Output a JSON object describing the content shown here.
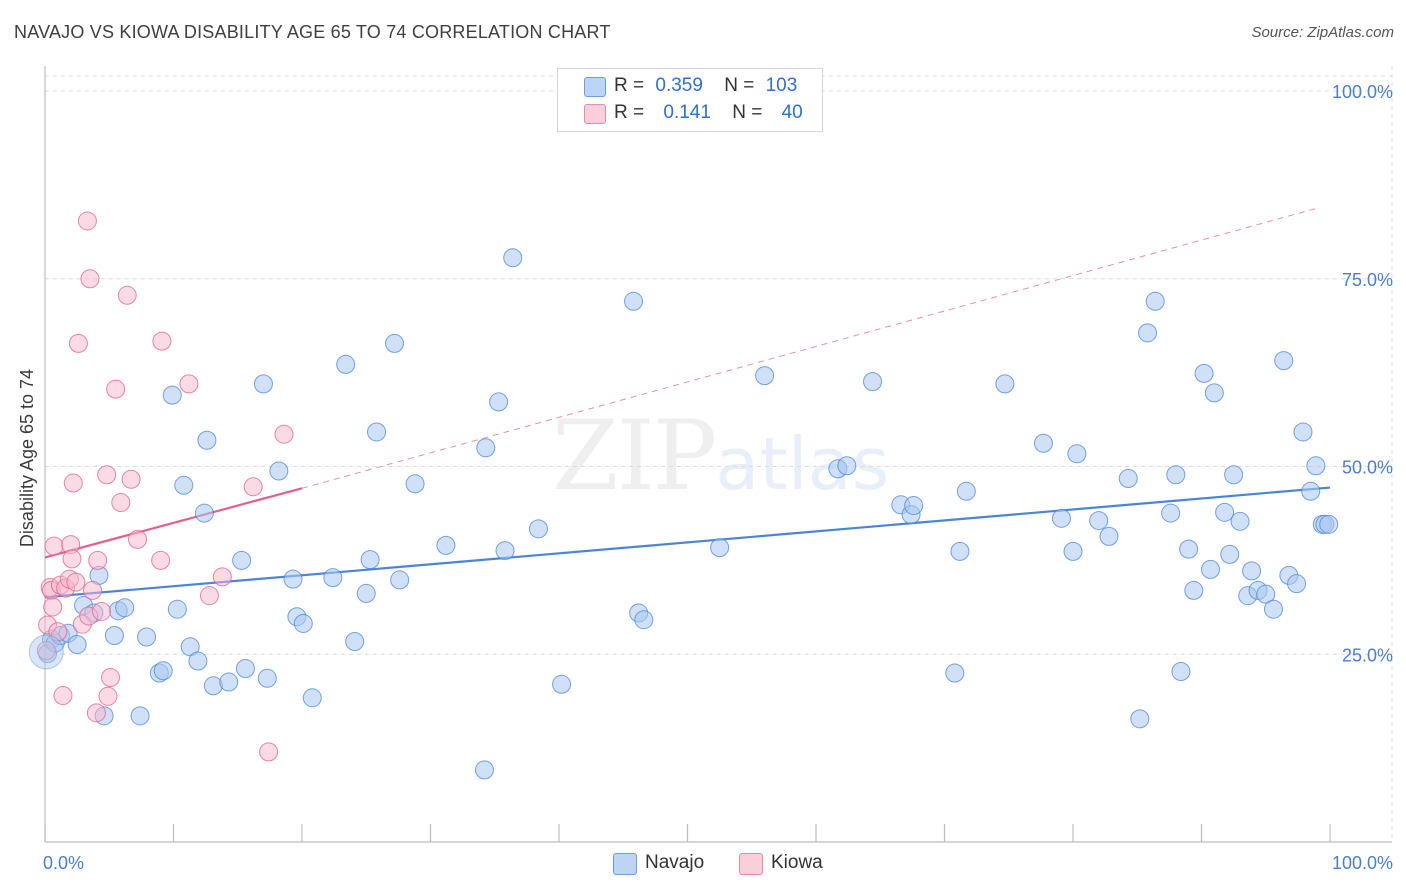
{
  "title": "NAVAJO VS KIOWA DISABILITY AGE 65 TO 74 CORRELATION CHART",
  "source": "Source: ZipAtlas.com",
  "watermark": {
    "zip": "ZIP",
    "atlas": "atlas"
  },
  "legend": {
    "rows": [
      {
        "r_label": "R =",
        "r_value": "0.359",
        "n_label": "N =",
        "n_value": "103",
        "color": "#a9c8f0"
      },
      {
        "r_label": "R =",
        "r_value": "0.141",
        "n_label": "N =",
        "n_value": "40",
        "color": "#f5b8cb"
      }
    ]
  },
  "bottom_legend": [
    {
      "label": "Navajo",
      "color": "#a9c8f0"
    },
    {
      "label": "Kiowa",
      "color": "#f5b8cb"
    }
  ],
  "chart_data": {
    "type": "scatter",
    "title": "NAVAJO VS KIOWA DISABILITY AGE 65 TO 74 CORRELATION CHART",
    "ylabel": "Disability Age 65 to 74",
    "xlabel": "",
    "xlim": [
      0,
      100
    ],
    "ylim": [
      0,
      102
    ],
    "x_tick_labels": [
      "0.0%",
      "100.0%"
    ],
    "y_tick_labels": [
      {
        "value": 25,
        "label": "25.0%"
      },
      {
        "value": 50,
        "label": "50.0%"
      },
      {
        "value": 75,
        "label": "75.0%"
      },
      {
        "value": 100,
        "label": "100.0%"
      }
    ],
    "grid": true,
    "series": [
      {
        "name": "Navajo",
        "color": "#4a85d8",
        "fill": "#a9c8f0",
        "trend": {
          "x": [
            0,
            100
          ],
          "y": [
            32.6,
            47.2
          ],
          "style": "solid"
        },
        "points": [
          [
            0.2,
            25.1
          ],
          [
            0.5,
            27.0
          ],
          [
            0.8,
            26.5
          ],
          [
            1.2,
            27.5
          ],
          [
            1.8,
            27.8
          ],
          [
            2.5,
            26.3
          ],
          [
            3.0,
            31.5
          ],
          [
            3.8,
            30.5
          ],
          [
            4.2,
            35.5
          ],
          [
            4.6,
            16.8
          ],
          [
            5.4,
            27.5
          ],
          [
            5.7,
            30.8
          ],
          [
            6.2,
            31.2
          ],
          [
            7.4,
            16.8
          ],
          [
            7.9,
            27.3
          ],
          [
            8.9,
            22.5
          ],
          [
            9.2,
            22.8
          ],
          [
            9.9,
            59.5
          ],
          [
            10.3,
            31.0
          ],
          [
            10.8,
            47.5
          ],
          [
            11.3,
            26.0
          ],
          [
            11.9,
            24.1
          ],
          [
            12.4,
            43.8
          ],
          [
            12.6,
            53.5
          ],
          [
            13.1,
            20.8
          ],
          [
            14.3,
            21.3
          ],
          [
            15.3,
            37.5
          ],
          [
            15.6,
            23.1
          ],
          [
            17.0,
            61.0
          ],
          [
            17.3,
            21.8
          ],
          [
            18.2,
            49.4
          ],
          [
            19.3,
            35.0
          ],
          [
            19.6,
            30.0
          ],
          [
            20.1,
            29.1
          ],
          [
            20.8,
            19.2
          ],
          [
            22.4,
            35.2
          ],
          [
            23.4,
            63.6
          ],
          [
            24.1,
            26.7
          ],
          [
            25.0,
            33.1
          ],
          [
            25.3,
            37.6
          ],
          [
            25.8,
            54.6
          ],
          [
            27.2,
            66.4
          ],
          [
            27.6,
            34.9
          ],
          [
            28.8,
            47.7
          ],
          [
            31.2,
            39.5
          ],
          [
            34.2,
            9.6
          ],
          [
            34.3,
            52.5
          ],
          [
            35.3,
            58.6
          ],
          [
            35.8,
            38.8
          ],
          [
            36.4,
            77.8
          ],
          [
            38.4,
            41.7
          ],
          [
            40.2,
            21.0
          ],
          [
            45.8,
            72.0
          ],
          [
            46.2,
            30.5
          ],
          [
            46.6,
            29.6
          ],
          [
            52.5,
            39.2
          ],
          [
            56.0,
            62.1
          ],
          [
            61.7,
            49.7
          ],
          [
            62.4,
            50.1
          ],
          [
            64.4,
            61.3
          ],
          [
            66.6,
            44.9
          ],
          [
            67.4,
            43.6
          ],
          [
            67.6,
            44.8
          ],
          [
            70.8,
            22.5
          ],
          [
            71.2,
            38.7
          ],
          [
            71.7,
            46.7
          ],
          [
            74.7,
            61.0
          ],
          [
            77.7,
            53.1
          ],
          [
            79.1,
            43.1
          ],
          [
            80.0,
            38.7
          ],
          [
            80.3,
            51.7
          ],
          [
            82.0,
            42.8
          ],
          [
            82.8,
            40.7
          ],
          [
            84.3,
            48.4
          ],
          [
            85.2,
            16.4
          ],
          [
            85.8,
            67.8
          ],
          [
            86.4,
            72.0
          ],
          [
            87.6,
            43.8
          ],
          [
            88.0,
            48.9
          ],
          [
            88.4,
            22.7
          ],
          [
            89.0,
            39.0
          ],
          [
            89.4,
            33.5
          ],
          [
            90.2,
            62.4
          ],
          [
            90.7,
            36.3
          ],
          [
            91.0,
            59.8
          ],
          [
            91.8,
            43.9
          ],
          [
            92.2,
            38.3
          ],
          [
            92.5,
            48.9
          ],
          [
            93.0,
            42.7
          ],
          [
            93.6,
            32.8
          ],
          [
            93.9,
            36.1
          ],
          [
            94.4,
            33.5
          ],
          [
            95.0,
            33.0
          ],
          [
            95.6,
            31.0
          ],
          [
            96.4,
            64.1
          ],
          [
            96.8,
            35.5
          ],
          [
            97.4,
            34.4
          ],
          [
            97.9,
            54.6
          ],
          [
            98.5,
            46.7
          ],
          [
            98.9,
            50.1
          ],
          [
            99.4,
            42.3
          ],
          [
            99.6,
            42.3
          ],
          [
            99.9,
            42.3
          ]
        ]
      },
      {
        "name": "Kiowa",
        "color": "#e0608f",
        "fill": "#f5b8cb",
        "trend": {
          "x": [
            0,
            20
          ],
          "y": [
            37.9,
            47.1
          ],
          "style": "solid",
          "extended": {
            "x": [
              20,
              99
            ],
            "y": [
              47.1,
              84.4
            ],
            "style": "dashed"
          }
        },
        "points": [
          [
            0.2,
            28.9
          ],
          [
            0.4,
            33.9
          ],
          [
            0.5,
            33.5
          ],
          [
            0.6,
            31.3
          ],
          [
            0.7,
            39.4
          ],
          [
            1.0,
            28.0
          ],
          [
            1.2,
            34.2
          ],
          [
            1.4,
            19.5
          ],
          [
            1.6,
            33.8
          ],
          [
            1.9,
            35.0
          ],
          [
            2.0,
            39.6
          ],
          [
            2.1,
            37.7
          ],
          [
            2.2,
            47.8
          ],
          [
            2.4,
            34.6
          ],
          [
            2.6,
            66.4
          ],
          [
            2.9,
            29.0
          ],
          [
            3.3,
            82.7
          ],
          [
            3.4,
            30.1
          ],
          [
            3.5,
            75.0
          ],
          [
            3.7,
            33.5
          ],
          [
            4.0,
            17.2
          ],
          [
            4.1,
            37.5
          ],
          [
            4.4,
            30.7
          ],
          [
            4.8,
            48.9
          ],
          [
            4.9,
            19.4
          ],
          [
            5.1,
            21.9
          ],
          [
            5.5,
            60.3
          ],
          [
            5.9,
            45.2
          ],
          [
            6.4,
            72.8
          ],
          [
            6.7,
            48.3
          ],
          [
            7.2,
            40.3
          ],
          [
            9.0,
            37.5
          ],
          [
            9.1,
            66.7
          ],
          [
            11.2,
            61.0
          ],
          [
            12.8,
            32.8
          ],
          [
            13.8,
            35.3
          ],
          [
            16.2,
            47.3
          ],
          [
            17.4,
            12.0
          ],
          [
            18.6,
            54.3
          ],
          [
            0.1,
            25.5
          ]
        ]
      }
    ]
  }
}
